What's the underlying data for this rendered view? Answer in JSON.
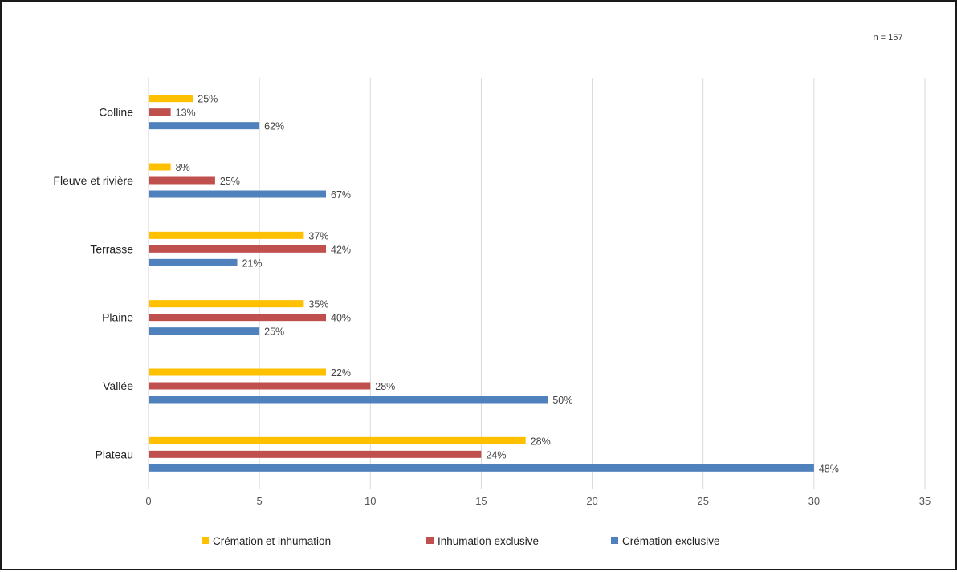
{
  "note": "n = 157",
  "chart_data": {
    "type": "bar",
    "orientation": "horizontal",
    "categories": [
      "Colline",
      "Fleuve et rivière",
      "Terrasse",
      "Plaine",
      "Vallée",
      "Plateau"
    ],
    "series": [
      {
        "name": "Crémation et inhumation",
        "color": "#FFC000",
        "values": [
          2,
          1,
          7,
          7,
          8,
          17
        ],
        "labels": [
          "25%",
          "8%",
          "37%",
          "35%",
          "22%",
          "28%"
        ]
      },
      {
        "name": "Inhumation exclusive",
        "color": "#C0504D",
        "values": [
          1,
          3,
          8,
          8,
          10,
          15
        ],
        "labels": [
          "13%",
          "25%",
          "42%",
          "40%",
          "28%",
          "24%"
        ]
      },
      {
        "name": "Crémation exclusive",
        "color": "#4F81BD",
        "values": [
          5,
          8,
          4,
          5,
          18,
          30
        ],
        "labels": [
          "62%",
          "67%",
          "21%",
          "25%",
          "50%",
          "48%"
        ]
      }
    ],
    "xlim": [
      0,
      35
    ],
    "xticks": [
      0,
      5,
      10,
      15,
      20,
      25,
      30,
      35
    ],
    "grid": true,
    "legend": "bottom"
  }
}
